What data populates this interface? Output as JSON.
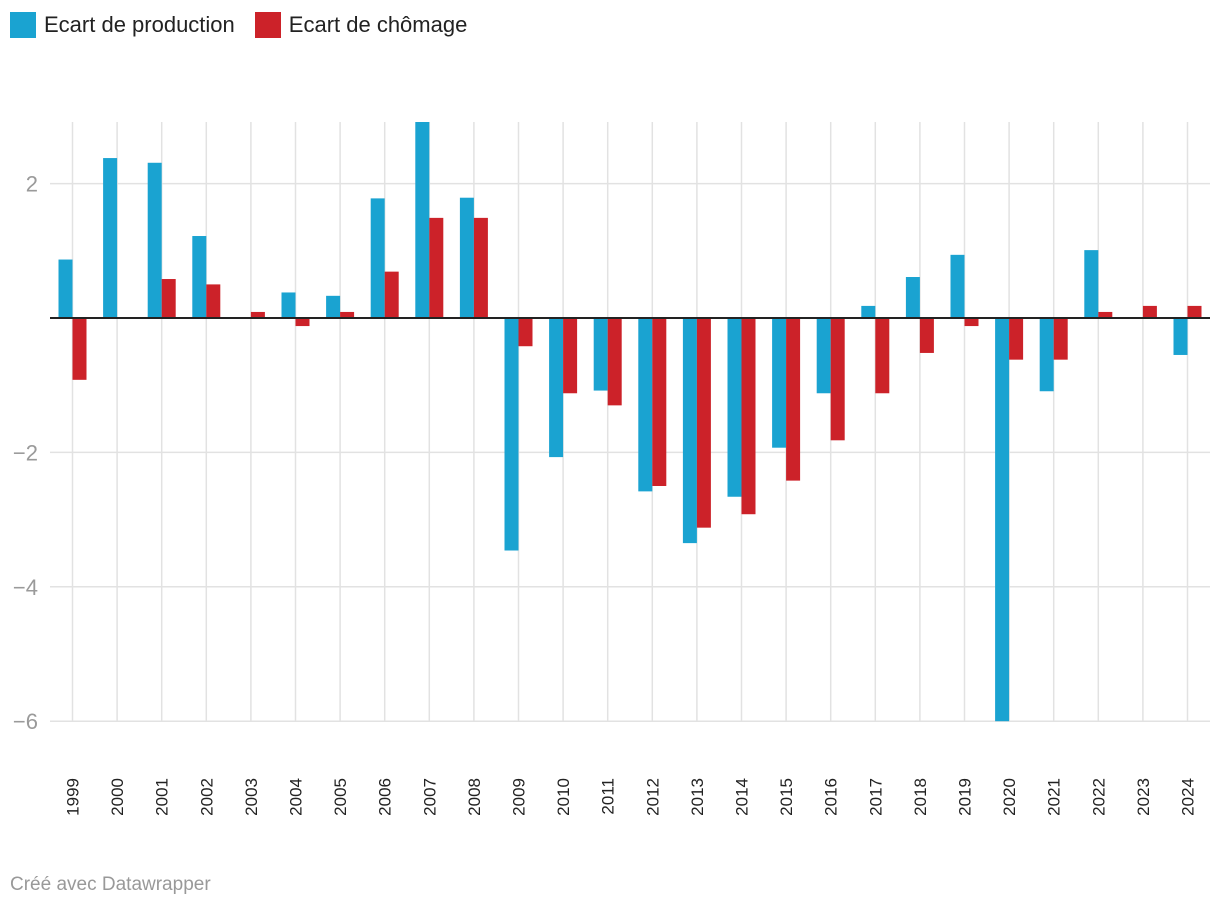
{
  "legend": {
    "series_a": {
      "label": "Ecart de production",
      "color": "#1aa3d1"
    },
    "series_b": {
      "label": "Ecart de chômage",
      "color": "#cc2229"
    }
  },
  "footer": {
    "credit": "Créé avec Datawrapper"
  },
  "chart_data": {
    "type": "bar",
    "title": "",
    "xlabel": "",
    "ylabel": "",
    "ylim": [
      -6,
      2.9
    ],
    "yticks": [
      2,
      -2,
      -4,
      -6
    ],
    "ytick_labels": [
      "2",
      "−2",
      "−4",
      "−6"
    ],
    "grid": true,
    "legend_position": "top-left",
    "categories": [
      "1999",
      "2000",
      "2001",
      "2002",
      "2003",
      "2004",
      "2005",
      "2006",
      "2007",
      "2008",
      "2009",
      "2010",
      "2011",
      "2012",
      "2013",
      "2014",
      "2015",
      "2016",
      "2017",
      "2018",
      "2019",
      "2020",
      "2021",
      "2022",
      "2023",
      "2024"
    ],
    "series": [
      {
        "name": "Ecart de production",
        "color": "#1aa3d1",
        "values": [
          0.87,
          2.38,
          2.31,
          1.22,
          0.0,
          0.38,
          0.33,
          1.78,
          2.93,
          1.79,
          -3.46,
          -2.07,
          -1.08,
          -2.58,
          -3.35,
          -2.66,
          -1.93,
          -1.12,
          0.18,
          0.61,
          0.94,
          -6.0,
          -1.09,
          1.01,
          0.0,
          -0.55
        ]
      },
      {
        "name": "Ecart de chômage",
        "color": "#cc2229",
        "values": [
          -0.92,
          0.0,
          0.58,
          0.5,
          0.09,
          -0.12,
          0.09,
          0.69,
          1.49,
          1.49,
          -0.42,
          -1.12,
          -1.3,
          -2.5,
          -3.12,
          -2.92,
          -2.42,
          -1.82,
          -1.12,
          -0.52,
          -0.12,
          -0.62,
          -0.62,
          0.09,
          0.18,
          0.18
        ]
      }
    ]
  }
}
